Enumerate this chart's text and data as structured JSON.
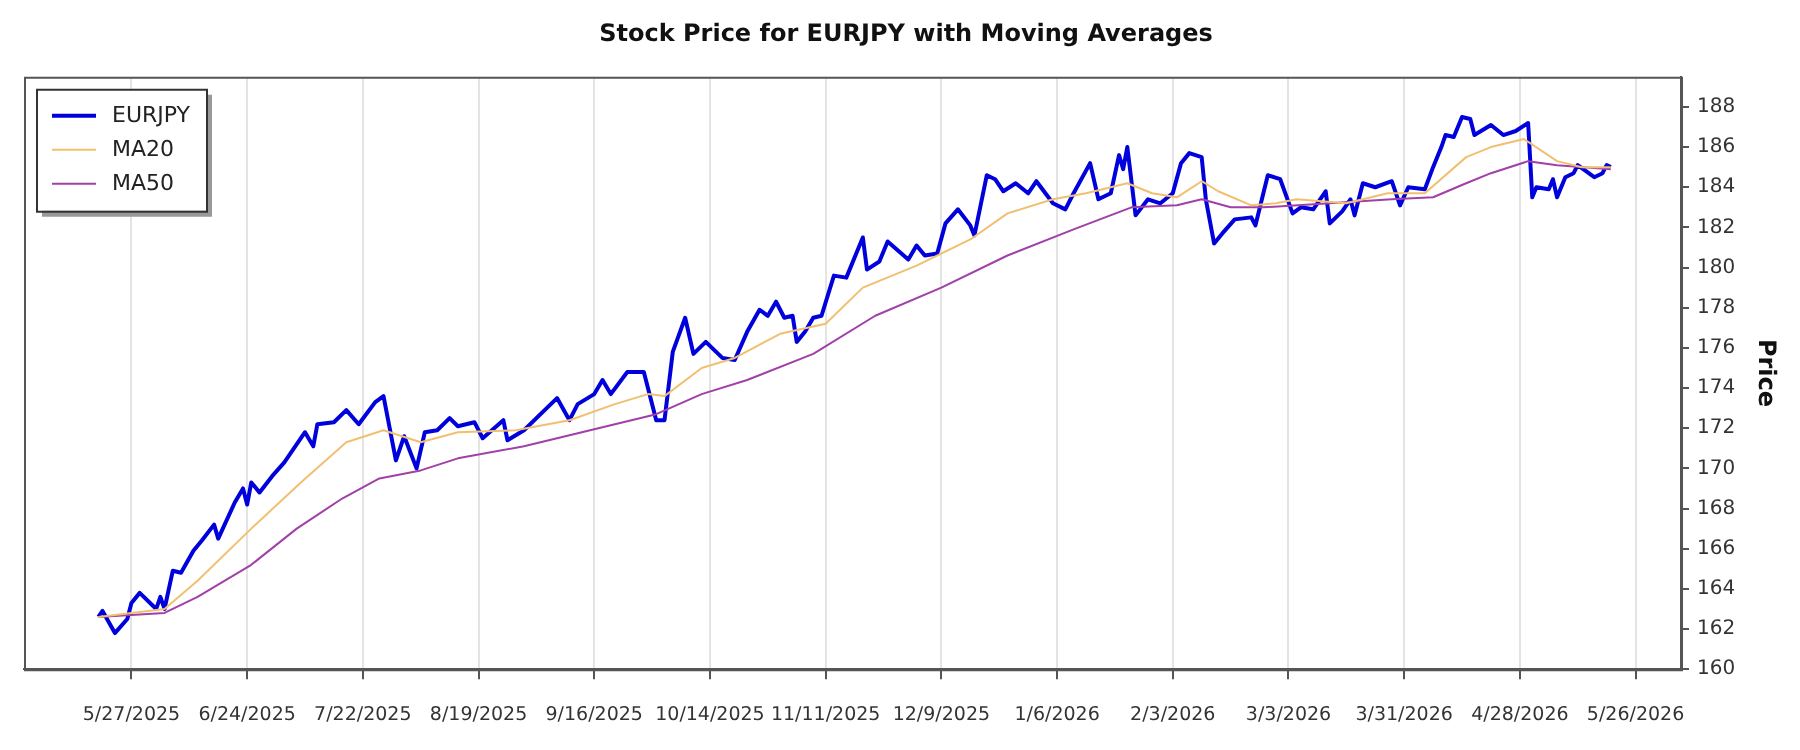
{
  "chart_data": {
    "type": "line",
    "title": "Stock Price for EURJPY with Moving Averages",
    "ylabel": "Price",
    "xlim": [
      "2025-05-01",
      "2026-06-06"
    ],
    "ylim": [
      160,
      189.5
    ],
    "yticks": [
      160,
      162,
      164,
      166,
      168,
      170,
      172,
      174,
      176,
      178,
      180,
      182,
      184,
      186,
      188
    ],
    "xticks": [
      {
        "value": "2025-05-27",
        "label": "5/27/2025"
      },
      {
        "value": "2025-06-24",
        "label": "6/24/2025"
      },
      {
        "value": "2025-07-22",
        "label": "7/22/2025"
      },
      {
        "value": "2025-08-19",
        "label": "8/19/2025"
      },
      {
        "value": "2025-09-16",
        "label": "9/16/2025"
      },
      {
        "value": "2025-10-14",
        "label": "10/14/2025"
      },
      {
        "value": "2025-11-11",
        "label": "11/11/2025"
      },
      {
        "value": "2025-12-09",
        "label": "12/9/2025"
      },
      {
        "value": "2026-01-06",
        "label": "1/6/2026"
      },
      {
        "value": "2026-02-03",
        "label": "2/3/2026"
      },
      {
        "value": "2026-03-03",
        "label": "3/3/2026"
      },
      {
        "value": "2026-03-31",
        "label": "3/31/2026"
      },
      {
        "value": "2026-04-28",
        "label": "4/28/2026"
      },
      {
        "value": "2026-05-26",
        "label": "5/26/2026"
      }
    ],
    "grid": "x",
    "legend": "top left",
    "marker": "none",
    "line_style": "solid",
    "series": [
      {
        "name": "EURJPY",
        "color": "#0000dd",
        "x": [
          "2025-05-19",
          "2025-05-20",
          "2025-05-23",
          "2025-05-26",
          "2025-05-27",
          "2025-05-29",
          "2025-06-02",
          "2025-06-03",
          "2025-06-04",
          "2025-06-06",
          "2025-06-08",
          "2025-06-11",
          "2025-06-13",
          "2025-06-16",
          "2025-06-17",
          "2025-06-21",
          "2025-06-23",
          "2025-06-24",
          "2025-06-25",
          "2025-06-27",
          "2025-06-30",
          "2025-07-03",
          "2025-07-08",
          "2025-07-10",
          "2025-07-11",
          "2025-07-15",
          "2025-07-18",
          "2025-07-21",
          "2025-07-25",
          "2025-07-27",
          "2025-07-30",
          "2025-08-01",
          "2025-08-04",
          "2025-08-06",
          "2025-08-09",
          "2025-08-12",
          "2025-08-14",
          "2025-08-18",
          "2025-08-20",
          "2025-08-25",
          "2025-08-26",
          "2025-08-30",
          "2025-09-04",
          "2025-09-07",
          "2025-09-10",
          "2025-09-12",
          "2025-09-16",
          "2025-09-18",
          "2025-09-20",
          "2025-09-24",
          "2025-09-28",
          "2025-10-01",
          "2025-10-03",
          "2025-10-05",
          "2025-10-08",
          "2025-10-10",
          "2025-10-13",
          "2025-10-17",
          "2025-10-20",
          "2025-10-23",
          "2025-10-26",
          "2025-10-28",
          "2025-10-30",
          "2025-11-01",
          "2025-11-03",
          "2025-11-04",
          "2025-11-06",
          "2025-11-08",
          "2025-11-10",
          "2025-11-13",
          "2025-11-16",
          "2025-11-20",
          "2025-11-21",
          "2025-11-24",
          "2025-11-26",
          "2025-12-01",
          "2025-12-03",
          "2025-12-05",
          "2025-12-08",
          "2025-12-10",
          "2025-12-13",
          "2025-12-16",
          "2025-12-17",
          "2025-12-18",
          "2025-12-20",
          "2025-12-22",
          "2025-12-24",
          "2025-12-27",
          "2025-12-30",
          "2026-01-01",
          "2026-01-05",
          "2026-01-08",
          "2026-01-10",
          "2026-01-14",
          "2026-01-16",
          "2026-01-19",
          "2026-01-21",
          "2026-01-22",
          "2026-01-23",
          "2026-01-25",
          "2026-01-28",
          "2026-01-31",
          "2026-02-03",
          "2026-02-05",
          "2026-02-07",
          "2026-02-10",
          "2026-02-11",
          "2026-02-13",
          "2026-02-15",
          "2026-02-18",
          "2026-02-22",
          "2026-02-23",
          "2026-02-26",
          "2026-03-01",
          "2026-03-04",
          "2026-03-06",
          "2026-03-09",
          "2026-03-12",
          "2026-03-13",
          "2026-03-16",
          "2026-03-18",
          "2026-03-19",
          "2026-03-21",
          "2026-03-24",
          "2026-03-28",
          "2026-03-30",
          "2026-04-01",
          "2026-04-05",
          "2026-04-07",
          "2026-04-09",
          "2026-04-10",
          "2026-04-12",
          "2026-04-14",
          "2026-04-16",
          "2026-04-17",
          "2026-04-21",
          "2026-04-24",
          "2026-04-27",
          "2026-04-30",
          "2026-05-01",
          "2026-05-02",
          "2026-05-05",
          "2026-05-06",
          "2026-05-07",
          "2026-05-09",
          "2026-05-11",
          "2026-05-12",
          "2026-05-14",
          "2026-05-16",
          "2026-05-18",
          "2026-05-19",
          "2026-05-20"
        ],
        "values": [
          162.6,
          162.9,
          161.8,
          162.5,
          163.3,
          163.8,
          163.0,
          163.6,
          163.0,
          164.9,
          164.8,
          165.9,
          166.4,
          167.2,
          166.5,
          168.3,
          169.0,
          168.2,
          169.3,
          168.8,
          169.6,
          170.3,
          171.8,
          171.1,
          172.2,
          172.3,
          172.9,
          172.2,
          173.3,
          173.6,
          170.4,
          171.6,
          170.0,
          171.8,
          171.9,
          172.5,
          172.1,
          172.3,
          171.5,
          172.4,
          171.4,
          171.9,
          172.9,
          173.5,
          172.4,
          173.2,
          173.7,
          174.4,
          173.7,
          174.8,
          174.8,
          172.4,
          172.4,
          175.8,
          177.5,
          175.7,
          176.3,
          175.5,
          175.4,
          176.8,
          177.9,
          177.6,
          178.3,
          177.5,
          177.6,
          176.3,
          176.8,
          177.5,
          177.6,
          179.6,
          179.5,
          181.5,
          179.9,
          180.3,
          181.3,
          180.4,
          181.1,
          180.6,
          180.7,
          182.2,
          182.9,
          182.1,
          181.6,
          182.6,
          184.6,
          184.4,
          183.8,
          184.2,
          183.7,
          184.3,
          183.2,
          182.9,
          183.7,
          185.2,
          183.4,
          183.7,
          185.6,
          184.9,
          186.0,
          182.6,
          183.4,
          183.2,
          183.7,
          185.2,
          185.7,
          185.5,
          183.4,
          181.2,
          181.7,
          182.4,
          182.5,
          182.1,
          184.6,
          184.4,
          182.7,
          183.0,
          182.9,
          183.8,
          182.2,
          182.8,
          183.4,
          182.6,
          184.2,
          184.0,
          184.3,
          183.1,
          184.0,
          183.9,
          185.0,
          186.0,
          186.6,
          186.5,
          187.5,
          187.4,
          186.6,
          187.1,
          186.6,
          186.8,
          187.2,
          183.5,
          184.0,
          183.9,
          184.4,
          183.5,
          184.5,
          184.7,
          185.1,
          184.8,
          184.5,
          184.7,
          185.1,
          185.0
        ]
      },
      {
        "name": "MA20",
        "color": "#f0c070",
        "x": [
          "2025-05-19",
          "2025-06-04",
          "2025-06-12",
          "2025-06-25",
          "2025-07-07",
          "2025-07-18",
          "2025-07-27",
          "2025-08-05",
          "2025-08-14",
          "2025-08-28",
          "2025-09-10",
          "2025-09-21",
          "2025-09-29",
          "2025-10-03",
          "2025-10-12",
          "2025-10-20",
          "2025-10-31",
          "2025-11-11",
          "2025-11-20",
          "2025-12-03",
          "2025-12-16",
          "2025-12-25",
          "2026-01-05",
          "2026-01-13",
          "2026-01-23",
          "2026-01-29",
          "2026-02-04",
          "2026-02-10",
          "2026-02-14",
          "2026-02-22",
          "2026-02-28",
          "2026-03-05",
          "2026-03-17",
          "2026-03-27",
          "2026-04-05",
          "2026-04-15",
          "2026-04-21",
          "2026-04-29",
          "2026-05-07",
          "2026-05-13",
          "2026-05-20"
        ],
        "values": [
          162.6,
          163.0,
          164.4,
          167.0,
          169.3,
          171.3,
          171.9,
          171.3,
          171.8,
          171.9,
          172.4,
          173.2,
          173.7,
          173.6,
          175.0,
          175.5,
          176.7,
          177.2,
          179.0,
          180.1,
          181.4,
          182.7,
          183.4,
          183.7,
          184.2,
          183.7,
          183.5,
          184.3,
          183.8,
          183.1,
          183.2,
          183.4,
          183.2,
          183.7,
          183.7,
          185.5,
          186.0,
          186.4,
          185.3,
          185.0,
          185.0
        ]
      },
      {
        "name": "MA50",
        "color": "#a040a8",
        "x": [
          "2025-05-19",
          "2025-06-04",
          "2025-06-12",
          "2025-06-25",
          "2025-07-06",
          "2025-07-17",
          "2025-07-26",
          "2025-08-05",
          "2025-08-14",
          "2025-08-30",
          "2025-09-13",
          "2025-10-01",
          "2025-10-12",
          "2025-10-23",
          "2025-11-08",
          "2025-11-23",
          "2025-12-09",
          "2025-12-25",
          "2026-01-10",
          "2026-01-24",
          "2026-02-04",
          "2026-02-10",
          "2026-02-17",
          "2026-02-25",
          "2026-03-13",
          "2026-03-28",
          "2026-04-07",
          "2026-04-15",
          "2026-04-21",
          "2026-04-30",
          "2026-05-07",
          "2026-05-20"
        ],
        "values": [
          162.6,
          162.8,
          163.6,
          165.2,
          167.0,
          168.5,
          169.5,
          169.9,
          170.5,
          171.1,
          171.8,
          172.7,
          173.7,
          174.4,
          175.7,
          177.6,
          179.0,
          180.6,
          181.9,
          183.0,
          183.1,
          183.4,
          183.0,
          183.0,
          183.2,
          183.4,
          183.5,
          184.2,
          184.7,
          185.3,
          185.1,
          184.9
        ]
      }
    ]
  }
}
